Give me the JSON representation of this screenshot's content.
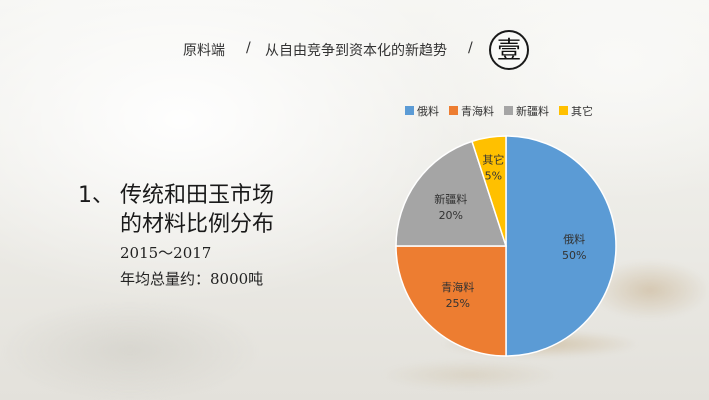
{
  "header": {
    "section": "原料端",
    "separator_1": "/",
    "subtitle": "从自由竞争到资本化的新趋势",
    "separator_2": "/",
    "badge": "壹"
  },
  "content": {
    "number": "1、",
    "heading_line1": "传统和田玉市场",
    "heading_line2": "的材料比例分布",
    "years": "2015～2017",
    "annual_total": "年均总量约：8000吨"
  },
  "chart_data": {
    "type": "pie",
    "title": "",
    "legend_position": "top",
    "slices": [
      {
        "name": "俄料",
        "label": "俄料",
        "value": 50,
        "value_label": "50%",
        "color": "#5b9bd5"
      },
      {
        "name": "青海料",
        "label": "青海料",
        "value": 25,
        "value_label": "25%",
        "color": "#ed7d31"
      },
      {
        "name": "新疆料",
        "label": "新疆料",
        "value": 20,
        "value_label": "20%",
        "color": "#a5a5a5"
      },
      {
        "name": "其它",
        "label": "其它",
        "value": 5,
        "value_label": "5%",
        "color": "#ffc000"
      }
    ]
  }
}
